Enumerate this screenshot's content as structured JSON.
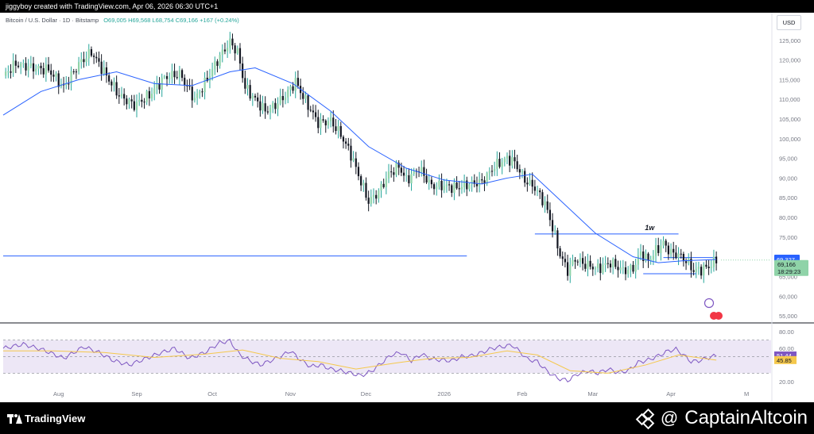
{
  "header": {
    "text": "jiggyboy created with TradingView.com, Apr 06, 2026 06:30 UTC+1"
  },
  "legend": {
    "symbol": "Bitcoin / U.S. Dollar · 1D · Bitstamp",
    "ohlc": "O69,005 H69,568 L68,754 C69,166 +167 (+0.24%)"
  },
  "currency_button": "USD",
  "footer": {
    "tradingview_label": "TradingView",
    "watermark_at": "@",
    "watermark": "CaptainAltcoin"
  },
  "colors": {
    "up": "#26a69a",
    "up_light": "#8fd3a8",
    "down": "#131722",
    "sma": "#2962ff",
    "rsi": "#7e57c2",
    "rsi_ma": "#f5c84c",
    "rsi_band": "#ede7f6",
    "level": "#2962ff"
  },
  "chart_data": [
    {
      "type": "candlestick",
      "title": "Bitcoin / U.S. Dollar · 1D · Bitstamp",
      "y_ticks": [
        55000,
        60000,
        65000,
        70000,
        75000,
        80000,
        85000,
        90000,
        95000,
        100000,
        105000,
        110000,
        115000,
        120000,
        125000
      ],
      "y_tick_labels": [
        "55,000",
        "60,000",
        "65,000",
        "70,000",
        "75,000",
        "80,000",
        "85,000",
        "90,000",
        "95,000",
        "100,000",
        "105,000",
        "110,000",
        "115,000",
        "120,000",
        "125,000"
      ],
      "x_ticks": [
        "Aug",
        "Sep",
        "Oct",
        "Nov",
        "Dec",
        "2026",
        "Feb",
        "Mar",
        "Apr",
        "M"
      ],
      "ylim": [
        53000,
        130000
      ],
      "price_path": [
        {
          "d": 0,
          "v": 116000
        },
        {
          "d": 5,
          "v": 119000
        },
        {
          "d": 12,
          "v": 118000
        },
        {
          "d": 18,
          "v": 117500
        },
        {
          "d": 24,
          "v": 113000
        },
        {
          "d": 30,
          "v": 119000
        },
        {
          "d": 35,
          "v": 122000
        },
        {
          "d": 40,
          "v": 117000
        },
        {
          "d": 46,
          "v": 111000
        },
        {
          "d": 52,
          "v": 108500
        },
        {
          "d": 58,
          "v": 111000
        },
        {
          "d": 64,
          "v": 115500
        },
        {
          "d": 70,
          "v": 116500
        },
        {
          "d": 76,
          "v": 110000
        },
        {
          "d": 80,
          "v": 114000
        },
        {
          "d": 86,
          "v": 121000
        },
        {
          "d": 90,
          "v": 124500
        },
        {
          "d": 93,
          "v": 122000
        },
        {
          "d": 96,
          "v": 113000
        },
        {
          "d": 100,
          "v": 110000
        },
        {
          "d": 104,
          "v": 107000
        },
        {
          "d": 108,
          "v": 108500
        },
        {
          "d": 112,
          "v": 111000
        },
        {
          "d": 116,
          "v": 114500
        },
        {
          "d": 120,
          "v": 109500
        },
        {
          "d": 125,
          "v": 104000
        },
        {
          "d": 130,
          "v": 104500
        },
        {
          "d": 134,
          "v": 101000
        },
        {
          "d": 138,
          "v": 96000
        },
        {
          "d": 142,
          "v": 89000
        },
        {
          "d": 145,
          "v": 84000
        },
        {
          "d": 149,
          "v": 86500
        },
        {
          "d": 153,
          "v": 91000
        },
        {
          "d": 157,
          "v": 93000
        },
        {
          "d": 160,
          "v": 89500
        },
        {
          "d": 165,
          "v": 92500
        },
        {
          "d": 170,
          "v": 88000
        },
        {
          "d": 175,
          "v": 88000
        },
        {
          "d": 180,
          "v": 87500
        },
        {
          "d": 185,
          "v": 88500
        },
        {
          "d": 190,
          "v": 89000
        },
        {
          "d": 195,
          "v": 93000
        },
        {
          "d": 200,
          "v": 95000
        },
        {
          "d": 203,
          "v": 94000
        },
        {
          "d": 207,
          "v": 89500
        },
        {
          "d": 211,
          "v": 87500
        },
        {
          "d": 215,
          "v": 83500
        },
        {
          "d": 218,
          "v": 77500
        },
        {
          "d": 221,
          "v": 70500
        },
        {
          "d": 224,
          "v": 66500
        },
        {
          "d": 227,
          "v": 69500
        },
        {
          "d": 231,
          "v": 68000
        },
        {
          "d": 236,
          "v": 67000
        },
        {
          "d": 241,
          "v": 68500
        },
        {
          "d": 246,
          "v": 66500
        },
        {
          "d": 250,
          "v": 67000
        },
        {
          "d": 253,
          "v": 71000
        },
        {
          "d": 256,
          "v": 69000
        },
        {
          "d": 259,
          "v": 71500
        },
        {
          "d": 262,
          "v": 73500
        },
        {
          "d": 265,
          "v": 71000
        },
        {
          "d": 268,
          "v": 70500
        },
        {
          "d": 271,
          "v": 69000
        },
        {
          "d": 274,
          "v": 66500
        },
        {
          "d": 277,
          "v": 66800
        },
        {
          "d": 280,
          "v": 67500
        },
        {
          "d": 283,
          "v": 69166
        }
      ],
      "series": [
        {
          "name": "sma",
          "type": "line",
          "points": [
            {
              "d": 0,
              "v": 106000
            },
            {
              "d": 15,
              "v": 112000
            },
            {
              "d": 30,
              "v": 115000
            },
            {
              "d": 45,
              "v": 117000
            },
            {
              "d": 60,
              "v": 114000
            },
            {
              "d": 75,
              "v": 113500
            },
            {
              "d": 90,
              "v": 117000
            },
            {
              "d": 100,
              "v": 118000
            },
            {
              "d": 115,
              "v": 114000
            },
            {
              "d": 130,
              "v": 107000
            },
            {
              "d": 145,
              "v": 98000
            },
            {
              "d": 160,
              "v": 92500
            },
            {
              "d": 175,
              "v": 89500
            },
            {
              "d": 190,
              "v": 88500
            },
            {
              "d": 200,
              "v": 90000
            },
            {
              "d": 210,
              "v": 91000
            },
            {
              "d": 220,
              "v": 85000
            },
            {
              "d": 235,
              "v": 76000
            },
            {
              "d": 250,
              "v": 70000
            },
            {
              "d": 260,
              "v": 68500
            },
            {
              "d": 270,
              "v": 69000
            },
            {
              "d": 283,
              "v": 69327
            }
          ]
        }
      ],
      "levels": [
        {
          "value": 70200,
          "from_day": 0,
          "to_day": 184
        },
        {
          "value": 75800,
          "from_day": 211,
          "to_day": 268,
          "label": "1w"
        },
        {
          "value": 65700,
          "from_day": 254,
          "to_day": 275
        },
        {
          "value": 69800,
          "from_day": 262,
          "to_day": 283
        }
      ],
      "price_labels": [
        {
          "text": "69,327",
          "value": 69327,
          "kind": "sma"
        },
        {
          "text": "69,166",
          "value": 69166,
          "kind": "last"
        },
        {
          "text": "18:29:23",
          "kind": "countdown"
        }
      ]
    },
    {
      "type": "line",
      "y_ticks": [
        20,
        40,
        60,
        80
      ],
      "y_tick_labels": [
        "20.00",
        "",
        "60.00",
        "80.00"
      ],
      "ylim": [
        15,
        85
      ],
      "band": [
        30,
        70
      ],
      "series": [
        {
          "name": "RSI",
          "points": [
            {
              "d": 0,
              "v": 60
            },
            {
              "d": 8,
              "v": 65
            },
            {
              "d": 16,
              "v": 58
            },
            {
              "d": 24,
              "v": 48
            },
            {
              "d": 32,
              "v": 62
            },
            {
              "d": 38,
              "v": 55
            },
            {
              "d": 44,
              "v": 45
            },
            {
              "d": 50,
              "v": 40
            },
            {
              "d": 56,
              "v": 47
            },
            {
              "d": 62,
              "v": 54
            },
            {
              "d": 68,
              "v": 60
            },
            {
              "d": 74,
              "v": 48
            },
            {
              "d": 80,
              "v": 55
            },
            {
              "d": 86,
              "v": 67
            },
            {
              "d": 90,
              "v": 69
            },
            {
              "d": 94,
              "v": 52
            },
            {
              "d": 98,
              "v": 45
            },
            {
              "d": 102,
              "v": 40
            },
            {
              "d": 106,
              "v": 45
            },
            {
              "d": 110,
              "v": 50
            },
            {
              "d": 114,
              "v": 57
            },
            {
              "d": 118,
              "v": 46
            },
            {
              "d": 122,
              "v": 38
            },
            {
              "d": 126,
              "v": 40
            },
            {
              "d": 130,
              "v": 35
            },
            {
              "d": 134,
              "v": 33
            },
            {
              "d": 138,
              "v": 30
            },
            {
              "d": 142,
              "v": 27
            },
            {
              "d": 146,
              "v": 32
            },
            {
              "d": 150,
              "v": 42
            },
            {
              "d": 154,
              "v": 52
            },
            {
              "d": 158,
              "v": 55
            },
            {
              "d": 162,
              "v": 45
            },
            {
              "d": 166,
              "v": 53
            },
            {
              "d": 170,
              "v": 47
            },
            {
              "d": 174,
              "v": 46
            },
            {
              "d": 178,
              "v": 45
            },
            {
              "d": 182,
              "v": 50
            },
            {
              "d": 186,
              "v": 51
            },
            {
              "d": 190,
              "v": 55
            },
            {
              "d": 194,
              "v": 60
            },
            {
              "d": 198,
              "v": 62
            },
            {
              "d": 202,
              "v": 64
            },
            {
              "d": 205,
              "v": 56
            },
            {
              "d": 208,
              "v": 47
            },
            {
              "d": 212,
              "v": 44
            },
            {
              "d": 216,
              "v": 32
            },
            {
              "d": 220,
              "v": 24
            },
            {
              "d": 224,
              "v": 21
            },
            {
              "d": 228,
              "v": 29
            },
            {
              "d": 232,
              "v": 33
            },
            {
              "d": 236,
              "v": 30
            },
            {
              "d": 240,
              "v": 35
            },
            {
              "d": 244,
              "v": 31
            },
            {
              "d": 248,
              "v": 33
            },
            {
              "d": 252,
              "v": 43
            },
            {
              "d": 256,
              "v": 46
            },
            {
              "d": 260,
              "v": 51
            },
            {
              "d": 264,
              "v": 57
            },
            {
              "d": 267,
              "v": 59
            },
            {
              "d": 270,
              "v": 52
            },
            {
              "d": 273,
              "v": 44
            },
            {
              "d": 276,
              "v": 45
            },
            {
              "d": 279,
              "v": 48
            },
            {
              "d": 283,
              "v": 51.44
            }
          ]
        },
        {
          "name": "RSI-based MA",
          "points": [
            {
              "d": 0,
              "v": 57
            },
            {
              "d": 20,
              "v": 57
            },
            {
              "d": 40,
              "v": 55
            },
            {
              "d": 60,
              "v": 49
            },
            {
              "d": 80,
              "v": 53
            },
            {
              "d": 95,
              "v": 58
            },
            {
              "d": 110,
              "v": 48
            },
            {
              "d": 125,
              "v": 44
            },
            {
              "d": 140,
              "v": 35
            },
            {
              "d": 155,
              "v": 42
            },
            {
              "d": 170,
              "v": 48
            },
            {
              "d": 185,
              "v": 49
            },
            {
              "d": 200,
              "v": 57
            },
            {
              "d": 212,
              "v": 52
            },
            {
              "d": 225,
              "v": 33
            },
            {
              "d": 240,
              "v": 30
            },
            {
              "d": 255,
              "v": 40
            },
            {
              "d": 268,
              "v": 52
            },
            {
              "d": 283,
              "v": 45.85
            }
          ]
        }
      ],
      "value_labels": [
        {
          "text": "51.44",
          "value": 51.44
        },
        {
          "text": "45.85",
          "value": 45.85
        }
      ]
    }
  ]
}
